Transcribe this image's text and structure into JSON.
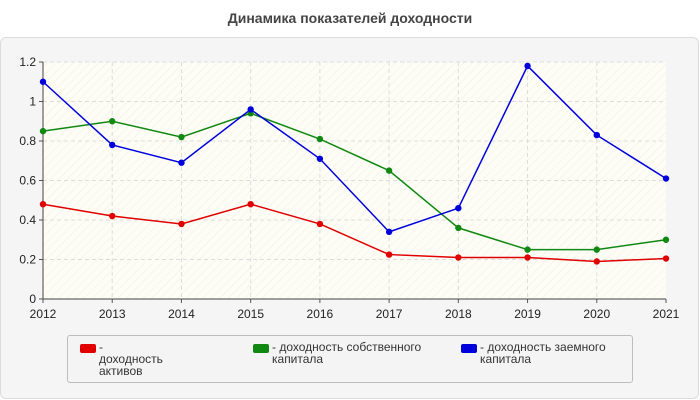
{
  "title": "Динамика показателей доходности",
  "colors": {
    "background": "#f5f5f5",
    "plot_bg": "#fdfdf5",
    "grid": "#dddddd"
  },
  "chart_data": {
    "type": "line",
    "title": "Динамика показателей доходности",
    "xlabel": "",
    "ylabel": "",
    "x": [
      "2012",
      "2013",
      "2014",
      "2015",
      "2016",
      "2017",
      "2018",
      "2019",
      "2020",
      "2021"
    ],
    "ylim": [
      0,
      1.2
    ],
    "yticks": [
      "0",
      "0.2",
      "0.4",
      "0.6",
      "0.8",
      "1",
      "1.2"
    ],
    "grid": true,
    "legend_position": "bottom",
    "series": [
      {
        "name": "- доходность активов",
        "color": "#e00000",
        "values": [
          0.48,
          0.42,
          0.38,
          0.48,
          0.38,
          0.225,
          0.21,
          0.21,
          0.19,
          0.205
        ]
      },
      {
        "name": "- доходность собственного капитала",
        "color": "#118811",
        "values": [
          0.85,
          0.9,
          0.82,
          0.94,
          0.81,
          0.65,
          0.36,
          0.25,
          0.25,
          0.3
        ]
      },
      {
        "name": "- доходность заемного капитала",
        "color": "#0000dd",
        "values": [
          1.1,
          0.78,
          0.69,
          0.96,
          0.71,
          0.34,
          0.46,
          1.18,
          0.83,
          0.61
        ]
      }
    ]
  }
}
